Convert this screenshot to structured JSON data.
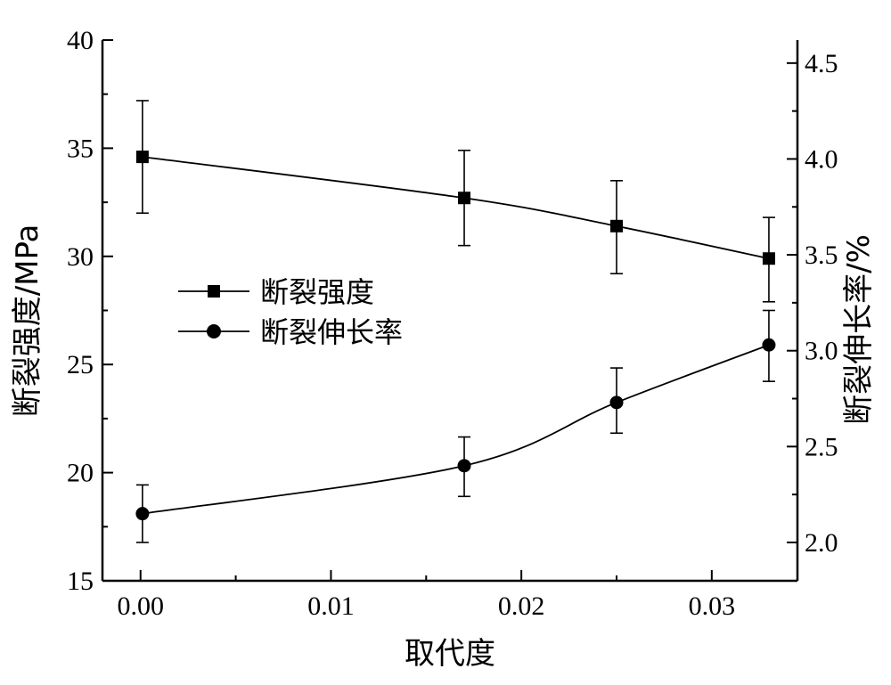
{
  "chart_data": {
    "type": "line",
    "xlabel": "取代度",
    "ylabel_left": "断裂强度/MPa",
    "ylabel_right": "断裂伸长率/%",
    "xlim": [
      -0.002,
      0.0345
    ],
    "ylim_left": [
      15,
      40
    ],
    "ylim_right": [
      1.8,
      4.62
    ],
    "x_ticks": [
      0.0,
      0.01,
      0.02,
      0.03
    ],
    "x_tick_labels": [
      "0.00",
      "0.01",
      "0.02",
      "0.03"
    ],
    "y_left_ticks": [
      15,
      20,
      25,
      30,
      35,
      40
    ],
    "y_left_tick_labels": [
      "15",
      "20",
      "25",
      "30",
      "35",
      "40"
    ],
    "y_right_ticks": [
      2.0,
      2.5,
      3.0,
      3.5,
      4.0,
      4.5
    ],
    "y_right_tick_labels": [
      "2.0",
      "2.5",
      "3.0",
      "3.5",
      "4.0",
      "4.5"
    ],
    "grid": false,
    "legend_position": "center-left",
    "series": [
      {
        "name": "断裂强度",
        "axis": "left",
        "marker": "square",
        "x": [
          0.0001,
          0.017,
          0.025,
          0.033
        ],
        "y": [
          34.6,
          32.7,
          31.4,
          29.9
        ],
        "err_low": [
          32.0,
          30.5,
          29.2,
          27.9
        ],
        "err_high": [
          37.2,
          34.9,
          33.5,
          31.8
        ]
      },
      {
        "name": "断裂伸长率",
        "axis": "right",
        "marker": "circle",
        "x": [
          0.0001,
          0.017,
          0.025,
          0.033
        ],
        "y": [
          2.15,
          2.4,
          2.73,
          3.03
        ],
        "err_low": [
          2.0,
          2.24,
          2.57,
          2.84
        ],
        "err_high": [
          2.3,
          2.55,
          2.91,
          3.21
        ]
      }
    ]
  }
}
